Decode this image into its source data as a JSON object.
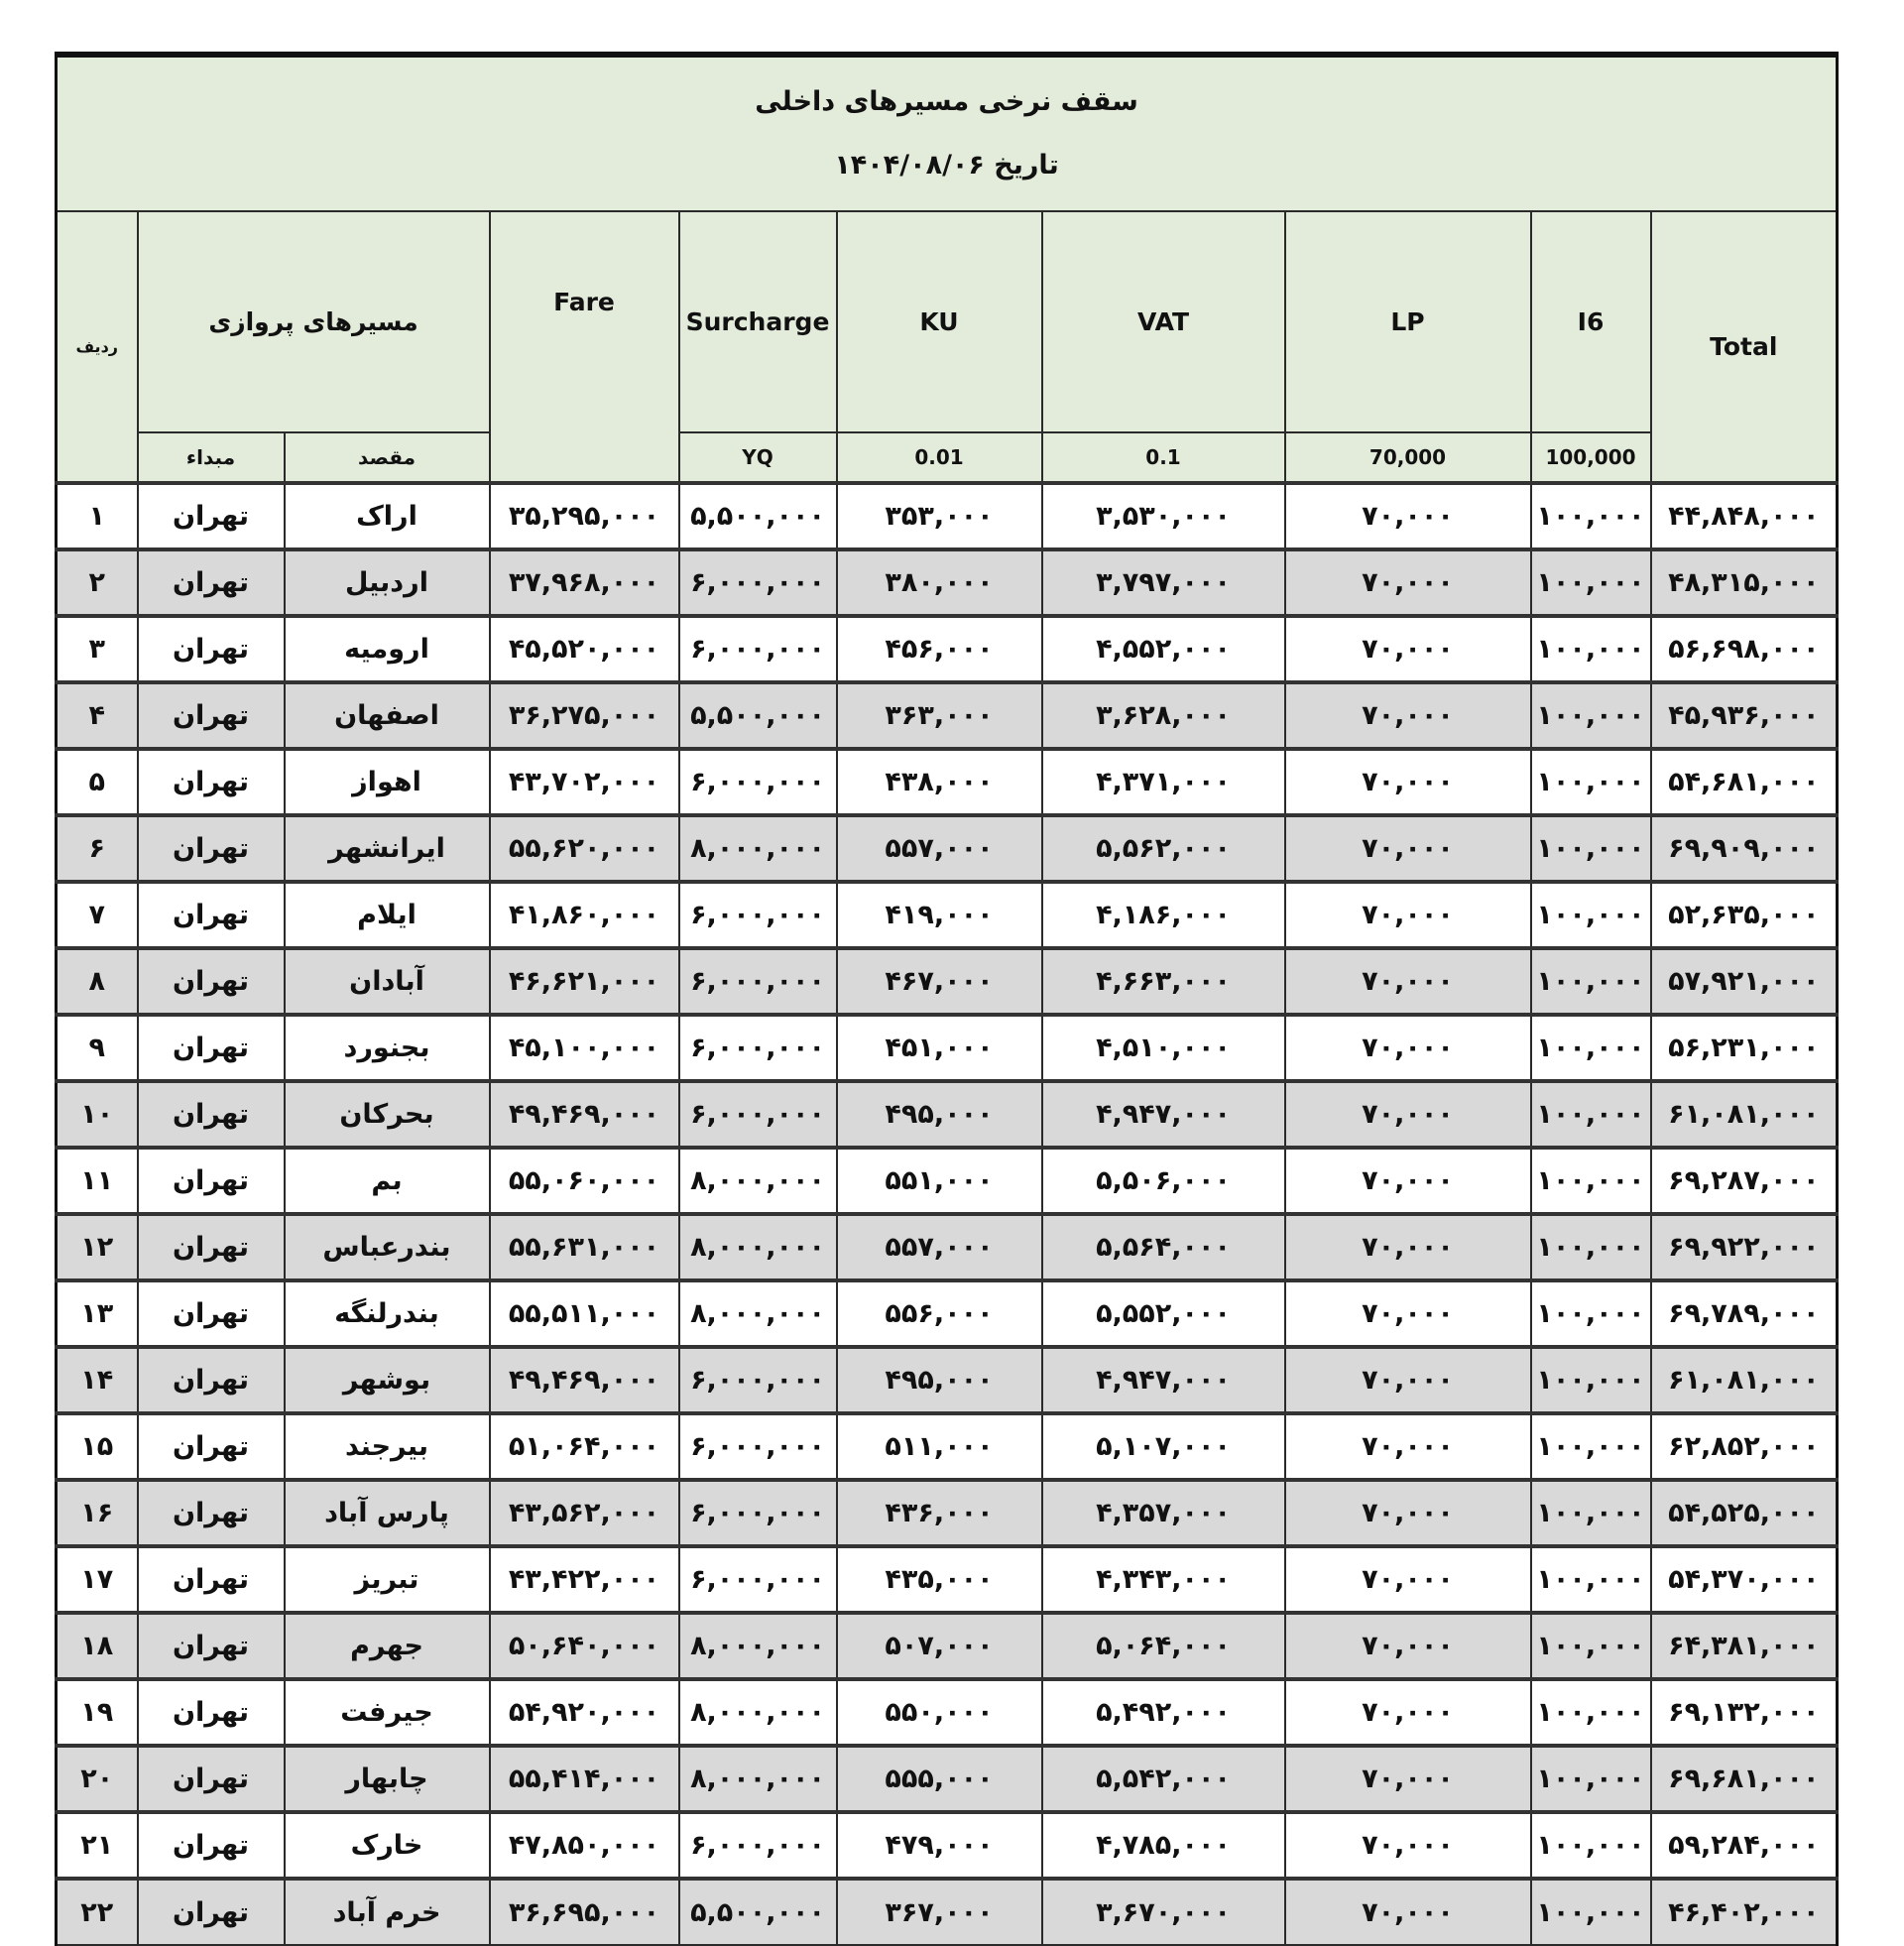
{
  "title": "سقف نرخی مسیرهای داخلی",
  "date_line": "تاریخ ۱۴۰۴/۰۸/۰۶",
  "headers": {
    "row_num": "ردیف",
    "routes": "مسیرهای پروازی",
    "origin": "مبداء",
    "destination": "مقصد",
    "fare": "Fare",
    "surcharge": "Surcharge",
    "surcharge_sub": "YQ",
    "ku": "KU",
    "ku_sub": "0.01",
    "vat": "VAT",
    "vat_sub": "0.1",
    "lp": "LP",
    "lp_sub": "70,000",
    "i6": "I6",
    "i6_sub": "100,000",
    "total": "Total"
  },
  "colors": {
    "header_bg": "#e3ecda",
    "alt_row_bg": "#d9d9d9",
    "border": "#2a2a2a"
  },
  "rows": [
    [
      "۱",
      "تهران",
      "اراک",
      "۳۵,۲۹۵,۰۰۰",
      "۵,۵۰۰,۰۰۰",
      "۳۵۳,۰۰۰",
      "۳,۵۳۰,۰۰۰",
      "۷۰,۰۰۰",
      "۱۰۰,۰۰۰",
      "۴۴,۸۴۸,۰۰۰"
    ],
    [
      "۲",
      "تهران",
      "اردبیل",
      "۳۷,۹۶۸,۰۰۰",
      "۶,۰۰۰,۰۰۰",
      "۳۸۰,۰۰۰",
      "۳,۷۹۷,۰۰۰",
      "۷۰,۰۰۰",
      "۱۰۰,۰۰۰",
      "۴۸,۳۱۵,۰۰۰"
    ],
    [
      "۳",
      "تهران",
      "ارومیه",
      "۴۵,۵۲۰,۰۰۰",
      "۶,۰۰۰,۰۰۰",
      "۴۵۶,۰۰۰",
      "۴,۵۵۲,۰۰۰",
      "۷۰,۰۰۰",
      "۱۰۰,۰۰۰",
      "۵۶,۶۹۸,۰۰۰"
    ],
    [
      "۴",
      "تهران",
      "اصفهان",
      "۳۶,۲۷۵,۰۰۰",
      "۵,۵۰۰,۰۰۰",
      "۳۶۳,۰۰۰",
      "۳,۶۲۸,۰۰۰",
      "۷۰,۰۰۰",
      "۱۰۰,۰۰۰",
      "۴۵,۹۳۶,۰۰۰"
    ],
    [
      "۵",
      "تهران",
      "اهواز",
      "۴۳,۷۰۲,۰۰۰",
      "۶,۰۰۰,۰۰۰",
      "۴۳۸,۰۰۰",
      "۴,۳۷۱,۰۰۰",
      "۷۰,۰۰۰",
      "۱۰۰,۰۰۰",
      "۵۴,۶۸۱,۰۰۰"
    ],
    [
      "۶",
      "تهران",
      "ایرانشهر",
      "۵۵,۶۲۰,۰۰۰",
      "۸,۰۰۰,۰۰۰",
      "۵۵۷,۰۰۰",
      "۵,۵۶۲,۰۰۰",
      "۷۰,۰۰۰",
      "۱۰۰,۰۰۰",
      "۶۹,۹۰۹,۰۰۰"
    ],
    [
      "۷",
      "تهران",
      "ایلام",
      "۴۱,۸۶۰,۰۰۰",
      "۶,۰۰۰,۰۰۰",
      "۴۱۹,۰۰۰",
      "۴,۱۸۶,۰۰۰",
      "۷۰,۰۰۰",
      "۱۰۰,۰۰۰",
      "۵۲,۶۳۵,۰۰۰"
    ],
    [
      "۸",
      "تهران",
      "آبادان",
      "۴۶,۶۲۱,۰۰۰",
      "۶,۰۰۰,۰۰۰",
      "۴۶۷,۰۰۰",
      "۴,۶۶۳,۰۰۰",
      "۷۰,۰۰۰",
      "۱۰۰,۰۰۰",
      "۵۷,۹۲۱,۰۰۰"
    ],
    [
      "۹",
      "تهران",
      "بجنورد",
      "۴۵,۱۰۰,۰۰۰",
      "۶,۰۰۰,۰۰۰",
      "۴۵۱,۰۰۰",
      "۴,۵۱۰,۰۰۰",
      "۷۰,۰۰۰",
      "۱۰۰,۰۰۰",
      "۵۶,۲۳۱,۰۰۰"
    ],
    [
      "۱۰",
      "تهران",
      "بحرکان",
      "۴۹,۴۶۹,۰۰۰",
      "۶,۰۰۰,۰۰۰",
      "۴۹۵,۰۰۰",
      "۴,۹۴۷,۰۰۰",
      "۷۰,۰۰۰",
      "۱۰۰,۰۰۰",
      "۶۱,۰۸۱,۰۰۰"
    ],
    [
      "۱۱",
      "تهران",
      "بم",
      "۵۵,۰۶۰,۰۰۰",
      "۸,۰۰۰,۰۰۰",
      "۵۵۱,۰۰۰",
      "۵,۵۰۶,۰۰۰",
      "۷۰,۰۰۰",
      "۱۰۰,۰۰۰",
      "۶۹,۲۸۷,۰۰۰"
    ],
    [
      "۱۲",
      "تهران",
      "بندرعباس",
      "۵۵,۶۳۱,۰۰۰",
      "۸,۰۰۰,۰۰۰",
      "۵۵۷,۰۰۰",
      "۵,۵۶۴,۰۰۰",
      "۷۰,۰۰۰",
      "۱۰۰,۰۰۰",
      "۶۹,۹۲۲,۰۰۰"
    ],
    [
      "۱۳",
      "تهران",
      "بندرلنگه",
      "۵۵,۵۱۱,۰۰۰",
      "۸,۰۰۰,۰۰۰",
      "۵۵۶,۰۰۰",
      "۵,۵۵۲,۰۰۰",
      "۷۰,۰۰۰",
      "۱۰۰,۰۰۰",
      "۶۹,۷۸۹,۰۰۰"
    ],
    [
      "۱۴",
      "تهران",
      "بوشهر",
      "۴۹,۴۶۹,۰۰۰",
      "۶,۰۰۰,۰۰۰",
      "۴۹۵,۰۰۰",
      "۴,۹۴۷,۰۰۰",
      "۷۰,۰۰۰",
      "۱۰۰,۰۰۰",
      "۶۱,۰۸۱,۰۰۰"
    ],
    [
      "۱۵",
      "تهران",
      "بیرجند",
      "۵۱,۰۶۴,۰۰۰",
      "۶,۰۰۰,۰۰۰",
      "۵۱۱,۰۰۰",
      "۵,۱۰۷,۰۰۰",
      "۷۰,۰۰۰",
      "۱۰۰,۰۰۰",
      "۶۲,۸۵۲,۰۰۰"
    ],
    [
      "۱۶",
      "تهران",
      "پارس آباد",
      "۴۳,۵۶۲,۰۰۰",
      "۶,۰۰۰,۰۰۰",
      "۴۳۶,۰۰۰",
      "۴,۳۵۷,۰۰۰",
      "۷۰,۰۰۰",
      "۱۰۰,۰۰۰",
      "۵۴,۵۲۵,۰۰۰"
    ],
    [
      "۱۷",
      "تهران",
      "تبریز",
      "۴۳,۴۲۲,۰۰۰",
      "۶,۰۰۰,۰۰۰",
      "۴۳۵,۰۰۰",
      "۴,۳۴۳,۰۰۰",
      "۷۰,۰۰۰",
      "۱۰۰,۰۰۰",
      "۵۴,۳۷۰,۰۰۰"
    ],
    [
      "۱۸",
      "تهران",
      "جهرم",
      "۵۰,۶۴۰,۰۰۰",
      "۸,۰۰۰,۰۰۰",
      "۵۰۷,۰۰۰",
      "۵,۰۶۴,۰۰۰",
      "۷۰,۰۰۰",
      "۱۰۰,۰۰۰",
      "۶۴,۳۸۱,۰۰۰"
    ],
    [
      "۱۹",
      "تهران",
      "جیرفت",
      "۵۴,۹۲۰,۰۰۰",
      "۸,۰۰۰,۰۰۰",
      "۵۵۰,۰۰۰",
      "۵,۴۹۲,۰۰۰",
      "۷۰,۰۰۰",
      "۱۰۰,۰۰۰",
      "۶۹,۱۳۲,۰۰۰"
    ],
    [
      "۲۰",
      "تهران",
      "چابهار",
      "۵۵,۴۱۴,۰۰۰",
      "۸,۰۰۰,۰۰۰",
      "۵۵۵,۰۰۰",
      "۵,۵۴۲,۰۰۰",
      "۷۰,۰۰۰",
      "۱۰۰,۰۰۰",
      "۶۹,۶۸۱,۰۰۰"
    ],
    [
      "۲۱",
      "تهران",
      "خارک",
      "۴۷,۸۵۰,۰۰۰",
      "۶,۰۰۰,۰۰۰",
      "۴۷۹,۰۰۰",
      "۴,۷۸۵,۰۰۰",
      "۷۰,۰۰۰",
      "۱۰۰,۰۰۰",
      "۵۹,۲۸۴,۰۰۰"
    ],
    [
      "۲۲",
      "تهران",
      "خرم آباد",
      "۳۶,۶۹۵,۰۰۰",
      "۵,۵۰۰,۰۰۰",
      "۳۶۷,۰۰۰",
      "۳,۶۷۰,۰۰۰",
      "۷۰,۰۰۰",
      "۱۰۰,۰۰۰",
      "۴۶,۴۰۲,۰۰۰"
    ]
  ]
}
